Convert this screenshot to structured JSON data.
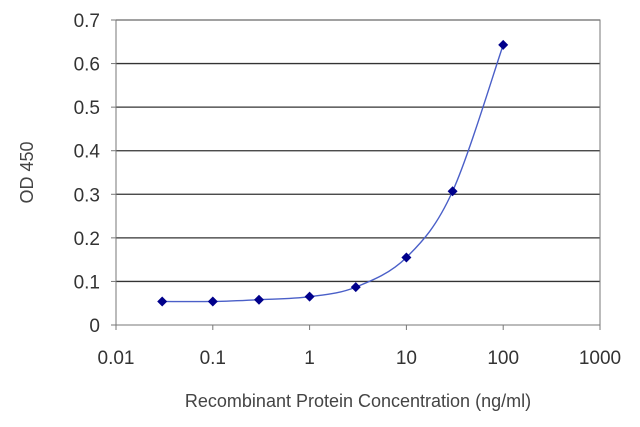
{
  "chart_data": {
    "type": "line",
    "title": "",
    "xlabel": "Recombinant Protein Concentration (ng/ml)",
    "ylabel": "OD 450",
    "x_scale": "log",
    "xlim": [
      0.01,
      1000
    ],
    "ylim": [
      0,
      0.7
    ],
    "x_ticks": [
      "0.01",
      "0.1",
      "1",
      "10",
      "100",
      "1000"
    ],
    "y_ticks": [
      "0",
      "0.1",
      "0.2",
      "0.3",
      "0.4",
      "0.5",
      "0.6",
      "0.7"
    ],
    "grid": "horizontal",
    "legend": "none",
    "series": [
      {
        "x": [
          0.03,
          0.1,
          0.3,
          1,
          3,
          10,
          30,
          100
        ],
        "y": [
          0.054,
          0.054,
          0.058,
          0.065,
          0.087,
          0.155,
          0.307,
          0.643
        ],
        "color": "#00008b",
        "line_color": "#4a5fc8",
        "marker": "diamond"
      }
    ]
  }
}
